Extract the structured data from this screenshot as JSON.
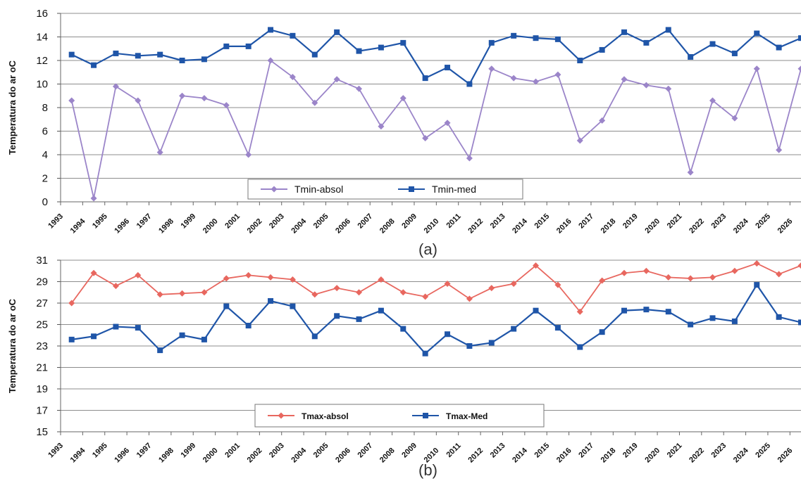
{
  "chart_data": [
    {
      "type": "line",
      "panel_label": "(a)",
      "ylabel": "Temperatura do ar oC",
      "ylim": [
        0,
        16
      ],
      "yticks": [
        0,
        2,
        4,
        6,
        8,
        10,
        12,
        14,
        16
      ],
      "grid": true,
      "legend_position": "bottom-center",
      "categories": [
        "1993",
        "1994",
        "1995",
        "1996",
        "1997",
        "1998",
        "1999",
        "2000",
        "2001",
        "2002",
        "2003",
        "2004",
        "2005",
        "2006",
        "2007",
        "2008",
        "2009",
        "2010",
        "2011",
        "2012",
        "2013",
        "2014",
        "2015",
        "2016",
        "2017",
        "2018",
        "2019",
        "2020",
        "2021",
        "2022",
        "2023",
        "2024",
        "2025",
        "2026"
      ],
      "series": [
        {
          "name": "Tmin-absol",
          "color": "#9b85c9",
          "marker": "diamond",
          "values": [
            8.6,
            0.3,
            9.8,
            8.6,
            4.2,
            9.0,
            8.8,
            8.2,
            4.0,
            12.0,
            10.6,
            8.4,
            10.4,
            9.6,
            6.4,
            8.8,
            5.4,
            6.7,
            3.7,
            11.3,
            10.5,
            10.2,
            10.8,
            5.2,
            6.9,
            10.4,
            9.9,
            9.6,
            2.5,
            8.6,
            7.1,
            11.3,
            4.4,
            11.3
          ]
        },
        {
          "name": "Tmin-med",
          "color": "#1f55a8",
          "marker": "square",
          "values": [
            12.5,
            11.6,
            12.6,
            12.4,
            12.5,
            12.0,
            12.1,
            13.2,
            13.2,
            14.6,
            14.1,
            12.5,
            14.4,
            12.8,
            13.1,
            13.5,
            10.5,
            11.4,
            10.0,
            13.5,
            14.1,
            13.9,
            13.8,
            12.0,
            12.9,
            14.4,
            13.5,
            14.6,
            12.3,
            13.4,
            12.6,
            14.3,
            13.1,
            13.9
          ]
        }
      ]
    },
    {
      "type": "line",
      "panel_label": "(b)",
      "ylabel": "Temperatura do ar oC",
      "ylim": [
        15,
        31
      ],
      "yticks": [
        15,
        17,
        19,
        21,
        23,
        25,
        27,
        29,
        31
      ],
      "grid": true,
      "legend_position": "bottom-center",
      "categories": [
        "1993",
        "1994",
        "1995",
        "1996",
        "1997",
        "1998",
        "1999",
        "2000",
        "2001",
        "2002",
        "2003",
        "2004",
        "2005",
        "2006",
        "2007",
        "2008",
        "2009",
        "2010",
        "2011",
        "2012",
        "2013",
        "2014",
        "2015",
        "2016",
        "2017",
        "2018",
        "2019",
        "2020",
        "2021",
        "2022",
        "2023",
        "2024",
        "2025",
        "2026"
      ],
      "series": [
        {
          "name": "Tmax-absol",
          "color": "#e8675f",
          "marker": "diamond",
          "values": [
            27.0,
            29.8,
            28.6,
            29.6,
            27.8,
            27.9,
            28.0,
            29.3,
            29.6,
            29.4,
            29.2,
            27.8,
            28.4,
            28.0,
            29.2,
            28.0,
            27.6,
            28.8,
            27.4,
            28.4,
            28.8,
            30.5,
            28.7,
            26.2,
            29.1,
            29.8,
            30.0,
            29.4,
            29.3,
            29.4,
            30.0,
            30.7,
            29.7,
            30.5
          ]
        },
        {
          "name": "Tmax-Med",
          "color": "#1f55a8",
          "marker": "square",
          "values": [
            23.6,
            23.9,
            24.8,
            24.7,
            22.6,
            24.0,
            23.6,
            26.7,
            24.9,
            27.2,
            26.7,
            23.9,
            25.8,
            25.5,
            26.3,
            24.6,
            22.3,
            24.1,
            23.0,
            23.3,
            24.6,
            26.3,
            24.7,
            22.9,
            24.3,
            26.3,
            26.4,
            26.2,
            25.0,
            25.6,
            25.3,
            28.7,
            25.7,
            25.2
          ]
        }
      ]
    }
  ]
}
